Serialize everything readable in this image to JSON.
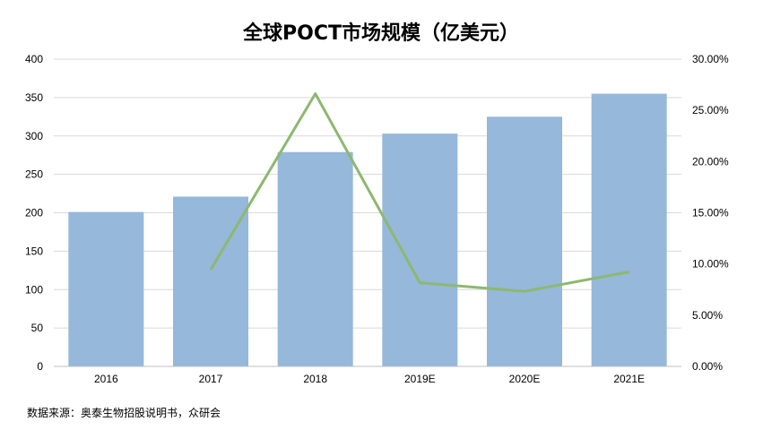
{
  "chart_data": {
    "type": "bar",
    "title": "全球POCT市场规模（亿美元）",
    "categories": [
      "2016",
      "2017",
      "2018",
      "2019E",
      "2020E",
      "2021E"
    ],
    "series": [
      {
        "values": [
          201,
          221,
          279,
          303,
          325,
          355
        ],
        "type": "bar",
        "axis": "left",
        "color": "#95B8DB"
      },
      {
        "values": [
          null,
          0.0945,
          0.2662,
          0.0817,
          0.0733,
          0.0923
        ],
        "type": "line",
        "axis": "right",
        "color": "#8DB870"
      }
    ],
    "ylim": [
      0,
      400
    ],
    "yticks": [
      "0",
      "50",
      "100",
      "150",
      "200",
      "250",
      "300",
      "350",
      "400"
    ],
    "y2lim": [
      0,
      0.3
    ],
    "y2ticks": [
      "0.00%",
      "5.00%",
      "10.00%",
      "15.00%",
      "20.00%",
      "25.00%",
      "30.00%"
    ],
    "grid": true,
    "legend": "none"
  },
  "source": "数据来源：奥泰生物招股说明书，众研会"
}
